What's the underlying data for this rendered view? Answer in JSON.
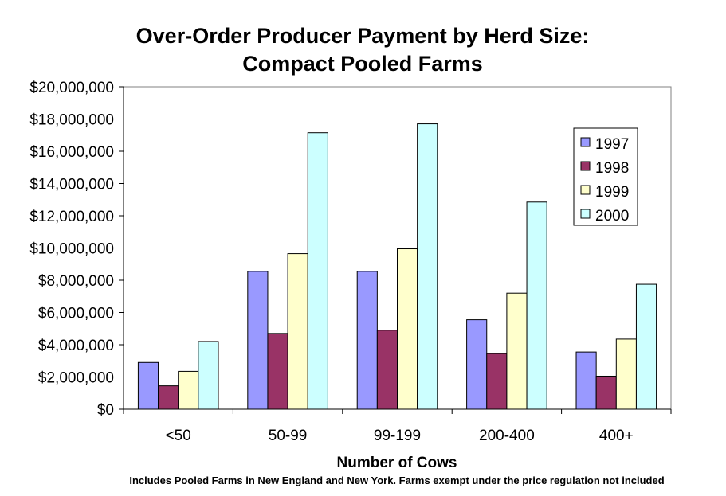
{
  "chart_data": {
    "type": "bar",
    "title_lines": [
      "Over-Order Producer Payment by Herd Size:",
      "Compact Pooled Farms"
    ],
    "xlabel": "Number of Cows",
    "ylabel": "",
    "note": "Includes Pooled Farms in New England and New York. Farms exempt under the price regulation not included",
    "categories": [
      "<50",
      "50-99",
      "99-199",
      "200-400",
      "400+"
    ],
    "ylim": [
      0,
      20000000
    ],
    "ytick_step": 2000000,
    "ytick_labels": [
      "$0",
      "$2,000,000",
      "$4,000,000",
      "$6,000,000",
      "$8,000,000",
      "$10,000,000",
      "$12,000,000",
      "$14,000,000",
      "$16,000,000",
      "$18,000,000",
      "$20,000,000"
    ],
    "grid": false,
    "legend_position": "top-right",
    "series": [
      {
        "name": "1997",
        "color": "#9999ff",
        "values": [
          2900000,
          8550000,
          8550000,
          5550000,
          3550000
        ]
      },
      {
        "name": "1998",
        "color": "#993366",
        "values": [
          1450000,
          4700000,
          4900000,
          3450000,
          2050000
        ]
      },
      {
        "name": "1999",
        "color": "#ffffcc",
        "values": [
          2350000,
          9650000,
          9950000,
          7200000,
          4350000
        ]
      },
      {
        "name": "2000",
        "color": "#ccffff",
        "values": [
          4200000,
          17150000,
          17700000,
          12850000,
          7750000
        ]
      }
    ]
  }
}
